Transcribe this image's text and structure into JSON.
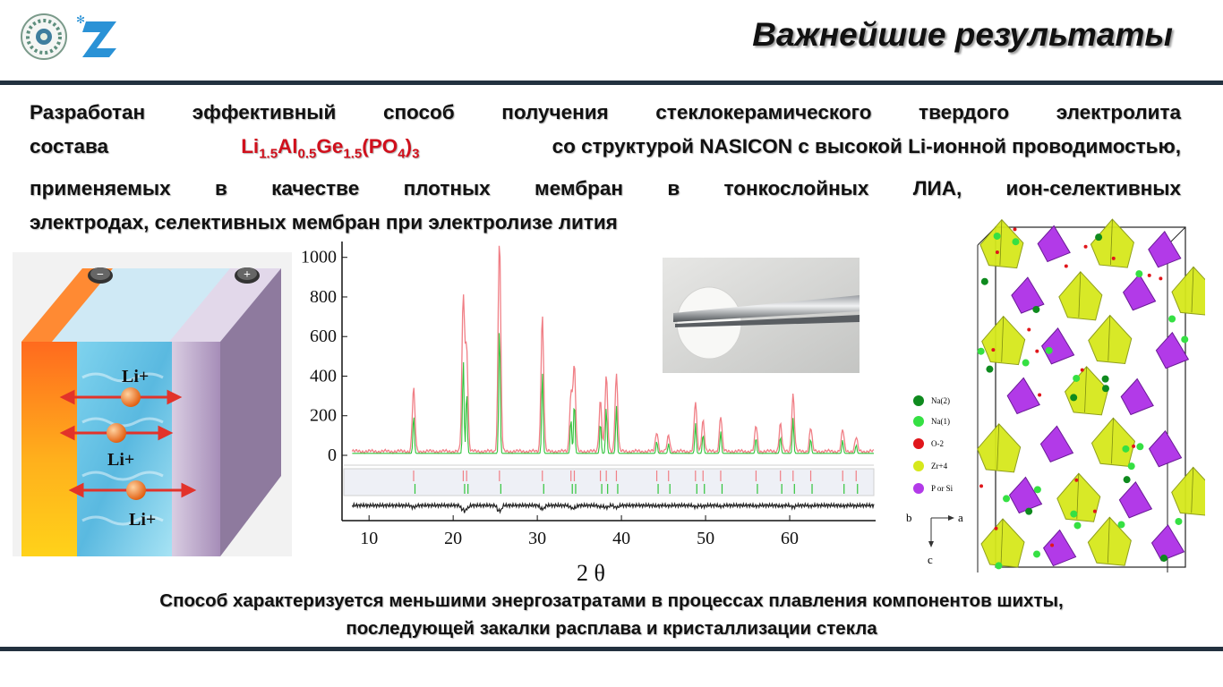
{
  "header": {
    "title": "Важнейшие результаты"
  },
  "intro": {
    "line1": "Разработан эффективный способ получения стеклокерамического твердого электролита",
    "composition_word": "состава",
    "formula_parts": [
      "Li",
      "1.5",
      "Al",
      "0.5",
      "Ge",
      "1.5",
      "(PO",
      "4",
      ")",
      "3"
    ],
    "after_formula": "со структурой NASICON с высокой Li-ионной проводимостью,",
    "line3": "применяемых в качестве плотных мембран в тонкослойных ЛИА, ион-селективных",
    "line4": "электродах, селективных мембран при электролизе лития"
  },
  "battery": {
    "minus": "−",
    "plus": "+",
    "ions": [
      "Li+",
      "Li+",
      "Li+"
    ]
  },
  "chart_data": {
    "type": "line",
    "xlabel": "2 θ",
    "ylabel": "",
    "xlim": [
      7,
      70
    ],
    "ylim": [
      0,
      1080
    ],
    "x_ticks": [
      "10",
      "20",
      "30",
      "40",
      "50",
      "60"
    ],
    "y_ticks": [
      "0",
      "200",
      "400",
      "600",
      "800",
      "1000"
    ],
    "peaks": [
      {
        "x": 15.3,
        "y": 320
      },
      {
        "x": 21.2,
        "y": 780
      },
      {
        "x": 21.6,
        "y": 520
      },
      {
        "x": 25.5,
        "y": 1075
      },
      {
        "x": 30.6,
        "y": 690
      },
      {
        "x": 34.0,
        "y": 290
      },
      {
        "x": 34.4,
        "y": 430
      },
      {
        "x": 37.5,
        "y": 260
      },
      {
        "x": 38.2,
        "y": 380
      },
      {
        "x": 39.4,
        "y": 390
      },
      {
        "x": 44.2,
        "y": 100
      },
      {
        "x": 45.6,
        "y": 80
      },
      {
        "x": 48.8,
        "y": 250
      },
      {
        "x": 49.7,
        "y": 160
      },
      {
        "x": 51.8,
        "y": 180
      },
      {
        "x": 56.0,
        "y": 130
      },
      {
        "x": 58.9,
        "y": 140
      },
      {
        "x": 60.4,
        "y": 290
      },
      {
        "x": 62.5,
        "y": 120
      },
      {
        "x": 66.3,
        "y": 110
      },
      {
        "x": 67.9,
        "y": 70
      }
    ]
  },
  "structure_legend": [
    {
      "label": "Na(2)",
      "color": "#0e8a1e"
    },
    {
      "label": "Na(1)",
      "color": "#35e043"
    },
    {
      "label": "O-2",
      "color": "#e0161b"
    },
    {
      "label": "Zr+4",
      "color": "#d6e81c"
    },
    {
      "label": "P or Si",
      "color": "#b23ae8"
    }
  ],
  "axes_labels": {
    "b": "b",
    "a": "a",
    "c": "c"
  },
  "bottom": {
    "line1": "Способ характеризуется меньшими энергозатратами в процессах плавления компонентов шихты,",
    "line2": "последующей закалки расплава и кристаллизации стекла"
  }
}
